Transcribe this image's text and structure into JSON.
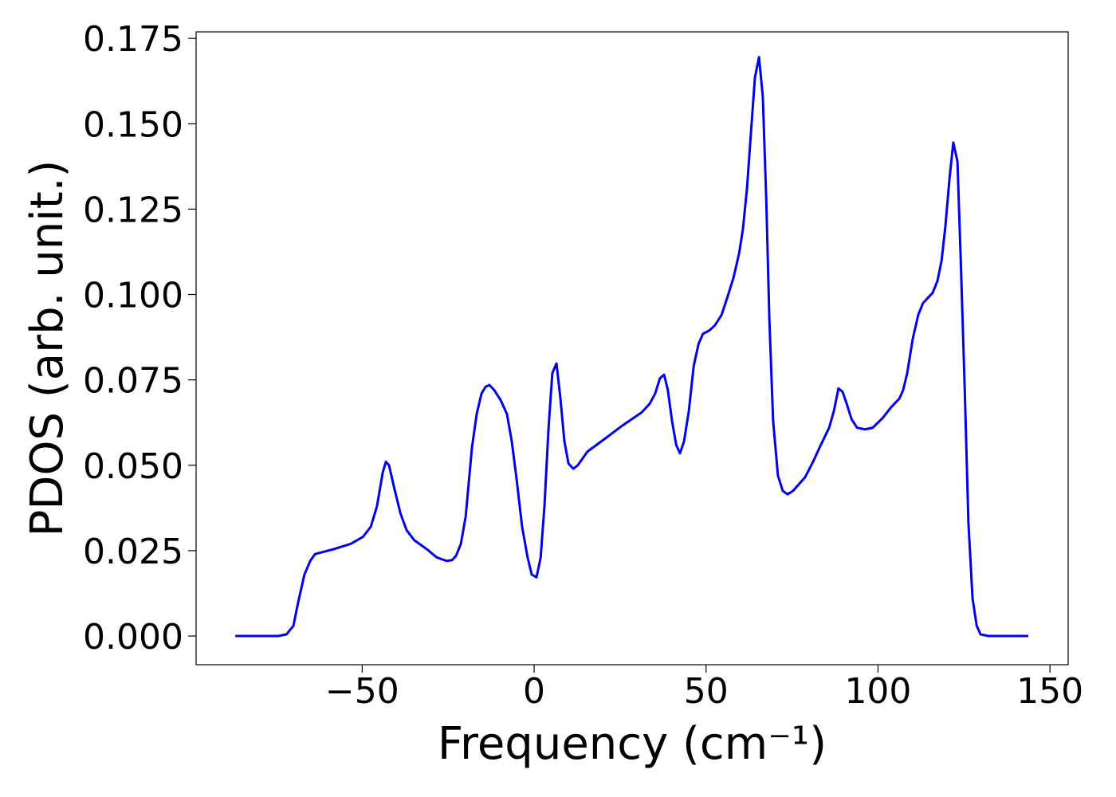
{
  "chart_data": {
    "type": "line",
    "xlabel": "Frequency (cm⁻¹)",
    "ylabel": "PDOS (arb. unit.)",
    "color": "#0000ee",
    "x": [
      -86.9,
      -74.4,
      -72,
      -70,
      -68.8,
      -66.8,
      -65.1,
      -63.7,
      -58,
      -53.3,
      -49.8,
      -47.5,
      -45.7,
      -44,
      -43.1,
      -42.2,
      -40.6,
      -38.9,
      -37.1,
      -34.8,
      -31.3,
      -28.3,
      -25.5,
      -23.9,
      -22.7,
      -21.3,
      -19.9,
      -18.1,
      -16.7,
      -15.3,
      -14.1,
      -13,
      -11.6,
      -9.7,
      -7.9,
      -6.5,
      -5.1,
      -3.5,
      -1.9,
      -0.7,
      0.7,
      1.9,
      3,
      4.2,
      5.3,
      6.5,
      7.6,
      8.8,
      10,
      11.4,
      12.7,
      15.5,
      20.9,
      25.5,
      31.3,
      33.6,
      35.2,
      36.6,
      37.8,
      38.9,
      40.1,
      41.3,
      42.4,
      43.6,
      45,
      46.4,
      47.8,
      49.1,
      51,
      52.6,
      54.5,
      56.3,
      58,
      59.6,
      60.7,
      61.9,
      63.1,
      64.2,
      65.4,
      66.5,
      67.5,
      68.4,
      69.5,
      70.9,
      72.3,
      73.7,
      75.3,
      78.8,
      81.1,
      83.4,
      85.8,
      87.2,
      88.5,
      89.7,
      90.9,
      92.3,
      93.9,
      96.2,
      98.5,
      101.5,
      103.8,
      106.2,
      107.3,
      108.5,
      110.1,
      111.7,
      113.1,
      114.5,
      115.9,
      117.3,
      118.5,
      119.6,
      120.8,
      121.9,
      123.1,
      124,
      125.2,
      126.3,
      127.5,
      128.7,
      129.8,
      132.1,
      143.7
    ],
    "values": [
      0,
      0,
      0.0005,
      0.003,
      0.009,
      0.018,
      0.022,
      0.024,
      0.0255,
      0.027,
      0.029,
      0.032,
      0.038,
      0.048,
      0.051,
      0.05,
      0.043,
      0.036,
      0.031,
      0.028,
      0.0255,
      0.023,
      0.022,
      0.0222,
      0.0235,
      0.027,
      0.035,
      0.055,
      0.065,
      0.071,
      0.073,
      0.0735,
      0.072,
      0.069,
      0.065,
      0.057,
      0.046,
      0.032,
      0.023,
      0.018,
      0.0172,
      0.023,
      0.038,
      0.061,
      0.077,
      0.0798,
      0.07,
      0.057,
      0.0505,
      0.049,
      0.05,
      0.054,
      0.058,
      0.0615,
      0.0655,
      0.068,
      0.071,
      0.0755,
      0.0765,
      0.072,
      0.063,
      0.056,
      0.0535,
      0.057,
      0.066,
      0.079,
      0.0855,
      0.0885,
      0.0895,
      0.091,
      0.094,
      0.0995,
      0.105,
      0.112,
      0.119,
      0.131,
      0.148,
      0.1635,
      0.1695,
      0.158,
      0.128,
      0.093,
      0.063,
      0.047,
      0.0425,
      0.0415,
      0.0425,
      0.0465,
      0.051,
      0.056,
      0.061,
      0.066,
      0.0725,
      0.0715,
      0.068,
      0.0635,
      0.061,
      0.0605,
      0.061,
      0.064,
      0.067,
      0.0695,
      0.072,
      0.077,
      0.087,
      0.094,
      0.0975,
      0.099,
      0.1005,
      0.104,
      0.11,
      0.12,
      0.134,
      0.1445,
      0.139,
      0.112,
      0.073,
      0.033,
      0.011,
      0.003,
      0.0005,
      0,
      0
    ],
    "xlim": [
      -98.3,
      155.3
    ],
    "ylim": [
      -0.0084,
      0.1769
    ],
    "xticks": [
      {
        "value": -50,
        "label": "−50"
      },
      0,
      50,
      100,
      150
    ],
    "yticks": [
      {
        "value": 0,
        "label": "0.000"
      },
      {
        "value": 0.025,
        "label": "0.025"
      },
      {
        "value": 0.05,
        "label": "0.050"
      },
      {
        "value": 0.075,
        "label": "0.075"
      },
      {
        "value": 0.1,
        "label": "0.100"
      },
      {
        "value": 0.125,
        "label": "0.125"
      },
      {
        "value": 0.15,
        "label": "0.150"
      },
      {
        "value": 0.175,
        "label": "0.175"
      }
    ]
  }
}
